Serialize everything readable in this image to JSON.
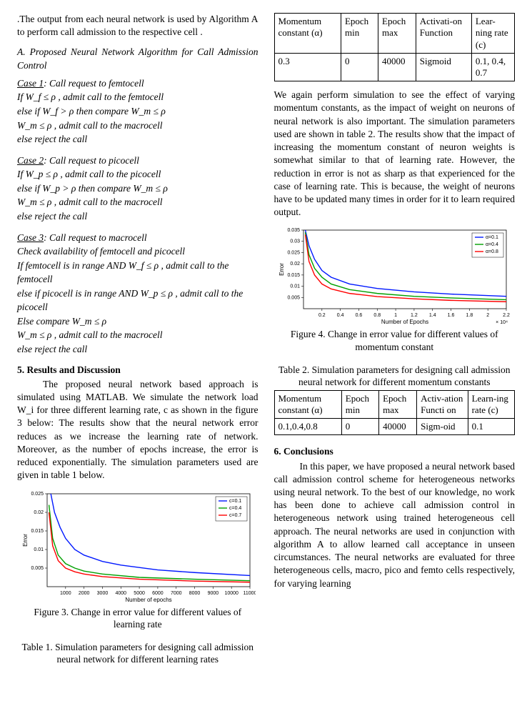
{
  "left": {
    "intro": ".The output from each neural network is used by Algorithm A to perform call admission to the respective cell .",
    "section_a": "A. Proposed Neural Network Algorithm for Call Admission Control",
    "case1_h": "Case 1",
    "case1_t": ": Call request to femtocell",
    "case1_l1": "If W_f ≤ ρ , admit call to the femtocell",
    "case1_l2": "else if W_f > ρ then compare W_m ≤ ρ",
    "case1_l3": "W_m ≤ ρ , admit call to the macrocell",
    "case1_l4": "else reject the call",
    "case2_h": "Case 2",
    "case2_t": ":  Call request to picocell",
    "case2_l1": "If W_p ≤ ρ , admit call to the picocell",
    "case2_l2": "else if W_p > ρ then compare W_m ≤ ρ",
    "case2_l3": "W_m ≤ ρ , admit call to the macrocell",
    "case2_l4": "else reject the call",
    "case3_h": "Case 3",
    "case3_t": ":  Call request to macrocell",
    "case3_l1": "Check availability of femtocell and picocell",
    "case3_l2": "If femtocell is in range AND W_f ≤ ρ , admit call to the       femtocell",
    "case3_l3": "else if picocell is in range AND  W_p ≤ ρ , admit call to the     picocell",
    "case3_l4": "Else compare W_m ≤ ρ",
    "case3_l5": "W_m ≤ ρ , admit call to the macrocell",
    "case3_l6": "else reject the call",
    "sec5_h": "5. Results and Discussion",
    "sec5_p": "The proposed neural network based approach is simulated using MATLAB. We simulate the network load W_i for three different learning rate, c as shown in the figure 3 below: The results show that the neural network error reduces as we increase the learning rate of network. Moreover, as the number of epochs increase, the error is reduced exponentially. The simulation parameters used are given in table 1 below.",
    "fig3_cap": "Figure 3. Change in error value for different values of learning rate",
    "tab1_cap": "Table 1. Simulation parameters for designing call admission neural network for different learning rates",
    "chart3": {
      "type": "line",
      "xlim": [
        0,
        11000
      ],
      "ylim": [
        0,
        0.025
      ],
      "xticks": [
        1000,
        2000,
        3000,
        4000,
        5000,
        6000,
        7000,
        8000,
        9000,
        10000,
        11000
      ],
      "yticks": [
        0.005,
        0.01,
        0.015,
        0.02,
        0.025
      ],
      "xlabel": "Number of epochs",
      "ylabel": "Error",
      "series": [
        {
          "label": "c=0.1",
          "color": "#0018ff",
          "x": [
            200,
            400,
            700,
            1000,
            1500,
            2000,
            3000,
            4000,
            6000,
            8000,
            11000
          ],
          "y": [
            0.025,
            0.02,
            0.016,
            0.013,
            0.01,
            0.0085,
            0.0068,
            0.0058,
            0.0045,
            0.0038,
            0.003
          ]
        },
        {
          "label": "c=0.4",
          "color": "#00a000",
          "x": [
            100,
            300,
            600,
            1000,
            1500,
            2000,
            3000,
            5000,
            8000,
            11000
          ],
          "y": [
            0.022,
            0.013,
            0.0085,
            0.0062,
            0.005,
            0.0042,
            0.0034,
            0.0025,
            0.002,
            0.0016
          ]
        },
        {
          "label": "c=0.7",
          "color": "#ff0000",
          "x": [
            100,
            300,
            600,
            1000,
            1500,
            2000,
            3000,
            5000,
            8000,
            11000
          ],
          "y": [
            0.02,
            0.011,
            0.007,
            0.005,
            0.004,
            0.0034,
            0.0027,
            0.002,
            0.0015,
            0.0012
          ]
        }
      ],
      "background": "#ffffff",
      "axis_color": "#000000",
      "label_fontsize": 7
    }
  },
  "right": {
    "table1": {
      "columns": [
        "Momentum constant (α)",
        "Epoch min",
        "Epoch max",
        "Activati-on Function",
        "Lear-ning rate (c)"
      ],
      "rows": [
        [
          "0.3",
          "0",
          "40000",
          "Sigmoid",
          "0.1, 0.4, 0.7"
        ]
      ]
    },
    "para": "We again perform simulation to see the effect of varying momentum constants, as the impact of weight on neurons of neural network is also important. The simulation parameters used are shown in table 2. The results show that the impact of increasing the momentum constant of neuron weights is somewhat similar to that of learning rate. However, the reduction in error is not as sharp as that experienced for the case of learning rate. This is because, the weight of neurons have to be updated many times in order for it to learn required output.",
    "fig4_cap": "Figure 4. Change in error value for different values of momentum constant",
    "tab2_cap": "Table 2. Simulation parameters for designing call admission neural network for different momentum constants",
    "table2": {
      "columns": [
        "Momentum constant (α)",
        "Epoch min",
        "Epoch max",
        "Activ-ation Functi on",
        "Learn-ing rate (c)"
      ],
      "rows": [
        [
          "0.1,0.4,0.8",
          "0",
          "40000",
          "Sigm-oid",
          "0.1"
        ]
      ]
    },
    "sec6_h": "6. Conclusions",
    "sec6_p": "In this paper, we have proposed a neural network based call admission control scheme for heterogeneous networks using neural network. To the best of our knowledge, no work has been done to achieve call admission control in heterogeneous network using trained heterogeneous cell approach. The neural networks are used in conjunction with algorithm A to allow learned call acceptance in unseen circumstances. The neural networks are evaluated for three heterogeneous cells, macro, pico and femto cells respectively, for varying learning",
    "chart4": {
      "type": "line",
      "xlim": [
        0,
        2.2
      ],
      "ylim": [
        0,
        0.035
      ],
      "xticks": [
        0.2,
        0.4,
        0.6,
        0.8,
        1.0,
        1.2,
        1.4,
        1.6,
        1.8,
        2.0,
        2.2
      ],
      "yticks": [
        0.005,
        0.01,
        0.015,
        0.02,
        0.025,
        0.03,
        0.035
      ],
      "xlabel": "Number of Epochs",
      "ylabel": "Error",
      "xnote": "× 10⁴",
      "series": [
        {
          "label": "α=0.1",
          "color": "#0018ff",
          "x": [
            0.02,
            0.06,
            0.12,
            0.2,
            0.3,
            0.5,
            0.8,
            1.2,
            1.6,
            2.2
          ],
          "y": [
            0.035,
            0.028,
            0.022,
            0.017,
            0.014,
            0.011,
            0.009,
            0.0075,
            0.0065,
            0.0055
          ]
        },
        {
          "label": "α=0.4",
          "color": "#00a000",
          "x": [
            0.02,
            0.06,
            0.12,
            0.2,
            0.3,
            0.5,
            0.8,
            1.2,
            1.6,
            2.2
          ],
          "y": [
            0.034,
            0.024,
            0.018,
            0.014,
            0.011,
            0.0085,
            0.0068,
            0.0055,
            0.0048,
            0.004
          ]
        },
        {
          "label": "α=0.8",
          "color": "#ff0000",
          "x": [
            0.02,
            0.06,
            0.12,
            0.2,
            0.3,
            0.5,
            0.8,
            1.2,
            1.6,
            2.2
          ],
          "y": [
            0.033,
            0.021,
            0.015,
            0.011,
            0.0088,
            0.0068,
            0.0054,
            0.0044,
            0.0037,
            0.0031
          ]
        }
      ],
      "background": "#ffffff",
      "axis_color": "#000000",
      "label_fontsize": 7
    }
  }
}
